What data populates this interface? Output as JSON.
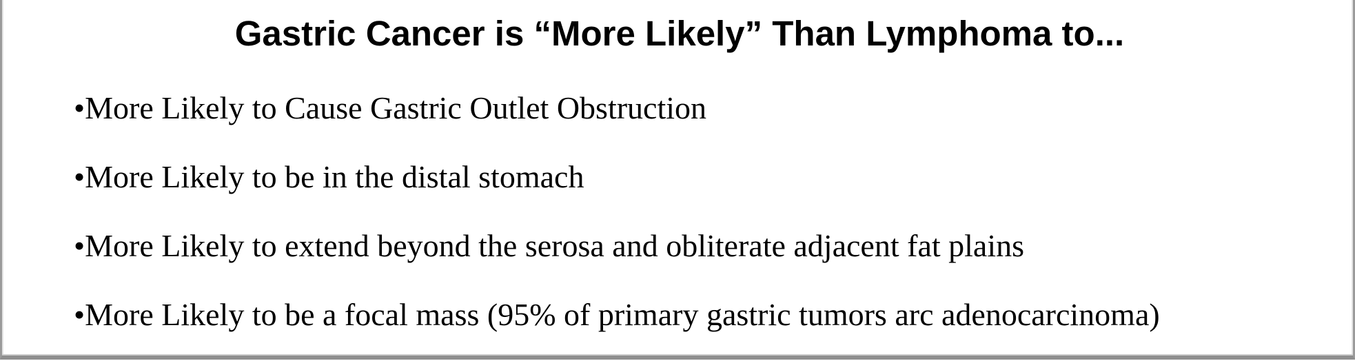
{
  "slide": {
    "title": "Gastric Cancer is “More Likely” Than Lymphoma to...",
    "bullet_symbol": "•",
    "bullets": [
      "More Likely to Cause Gastric Outlet Obstruction",
      "More Likely to be in the distal stomach",
      "More Likely to extend beyond the serosa and obliterate adjacent fat plains",
      "More Likely to be a focal mass (95% of primary gastric tumors arc adenocarcinoma)"
    ]
  }
}
